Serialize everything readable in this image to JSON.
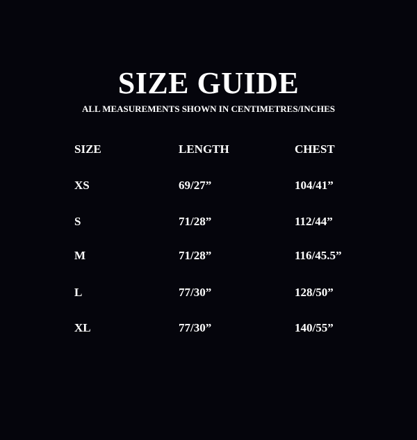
{
  "title": "SIZE GUIDE",
  "subtitle": "ALL MEASUREMENTS SHOWN IN CENTIMETRES/INCHES",
  "table": {
    "headers": [
      "SIZE",
      "LENGTH",
      "CHEST"
    ],
    "rows": [
      [
        "XS",
        "69/27”",
        "104/41”"
      ],
      [
        "S",
        "71/28”",
        "112/44”"
      ],
      [
        "M",
        "71/28”",
        "116/45.5”"
      ],
      [
        "L",
        "77/30”",
        "128/50”"
      ],
      [
        "XL",
        "77/30”",
        "140/55”"
      ]
    ]
  }
}
